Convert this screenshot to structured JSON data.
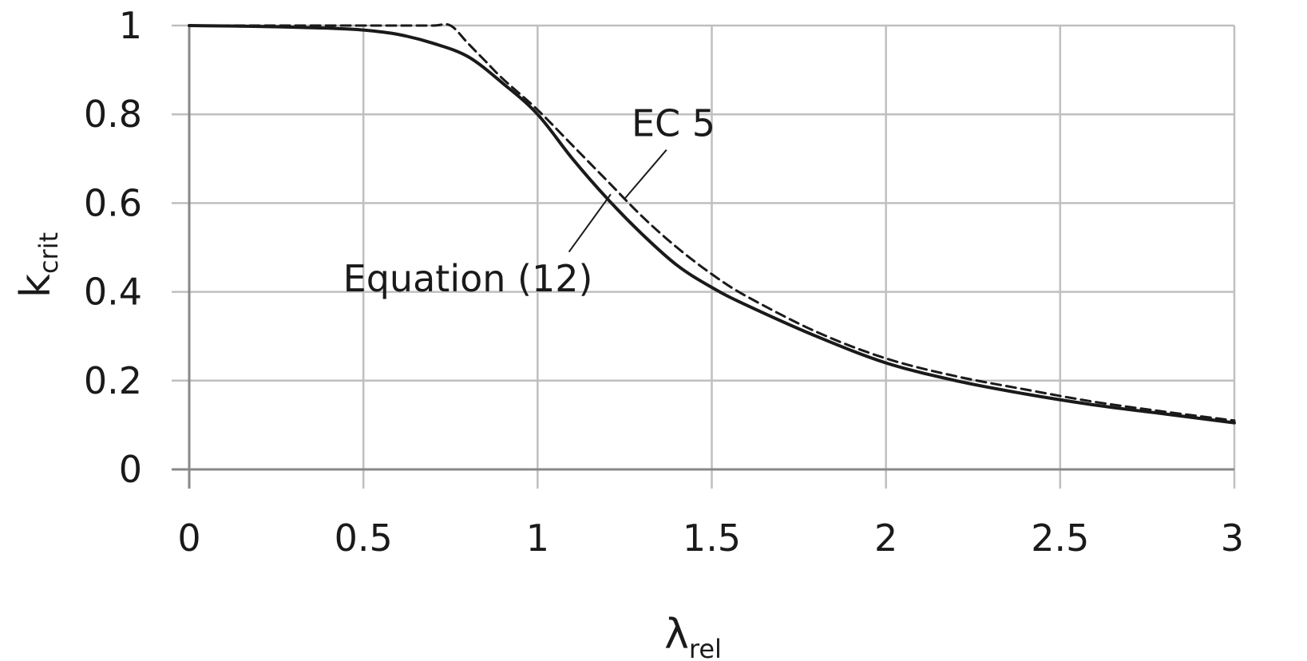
{
  "chart_data": {
    "type": "line",
    "xlim": [
      0,
      3
    ],
    "ylim": [
      0,
      1
    ],
    "x_ticks": [
      "0",
      "0.5",
      "1",
      "1.5",
      "2",
      "2.5",
      "3"
    ],
    "y_ticks": [
      "0",
      "0.2",
      "0.4",
      "0.6",
      "0.8",
      "1"
    ],
    "xlabel": {
      "main": "λ",
      "sub": "rel"
    },
    "ylabel": {
      "main": "k",
      "sub": "crit"
    },
    "grid": true,
    "series": [
      {
        "name": "Equation (12)",
        "style": "solid",
        "color": "#1a1a1a",
        "x": [
          0,
          0.2,
          0.4,
          0.5,
          0.6,
          0.7,
          0.8,
          0.9,
          1.0,
          1.1,
          1.2,
          1.3,
          1.4,
          1.5,
          1.6,
          1.8,
          2.0,
          2.2,
          2.4,
          2.6,
          2.8,
          3.0
        ],
        "y": [
          1.0,
          0.998,
          0.994,
          0.99,
          0.98,
          0.96,
          0.93,
          0.87,
          0.8,
          0.7,
          0.61,
          0.53,
          0.46,
          0.41,
          0.37,
          0.3,
          0.24,
          0.2,
          0.17,
          0.145,
          0.125,
          0.105
        ]
      },
      {
        "name": "EC 5",
        "style": "dashed",
        "color": "#1a1a1a",
        "x": [
          0,
          0.2,
          0.4,
          0.5,
          0.6,
          0.7,
          0.75,
          0.8,
          0.85,
          0.9,
          1.0,
          1.1,
          1.2,
          1.3,
          1.4,
          1.5,
          1.6,
          1.8,
          2.0,
          2.2,
          2.4,
          2.6,
          2.8,
          3.0
        ],
        "y": [
          1.0,
          1.0,
          1.0,
          1.0,
          1.0,
          1.0,
          1.0,
          0.96,
          0.92,
          0.88,
          0.81,
          0.73,
          0.65,
          0.57,
          0.5,
          0.44,
          0.39,
          0.31,
          0.25,
          0.21,
          0.18,
          0.152,
          0.13,
          0.11
        ]
      }
    ],
    "annotations": [
      {
        "text": "EC 5",
        "x": 1.39,
        "y": 0.78,
        "arrow_from": [
          1.37,
          0.72
        ],
        "arrow_to": [
          1.25,
          0.61
        ]
      },
      {
        "text": "Equation (12)",
        "x": 0.8,
        "y": 0.43,
        "arrow_from": [
          1.09,
          0.49
        ],
        "arrow_to": [
          1.21,
          0.62
        ]
      }
    ]
  }
}
